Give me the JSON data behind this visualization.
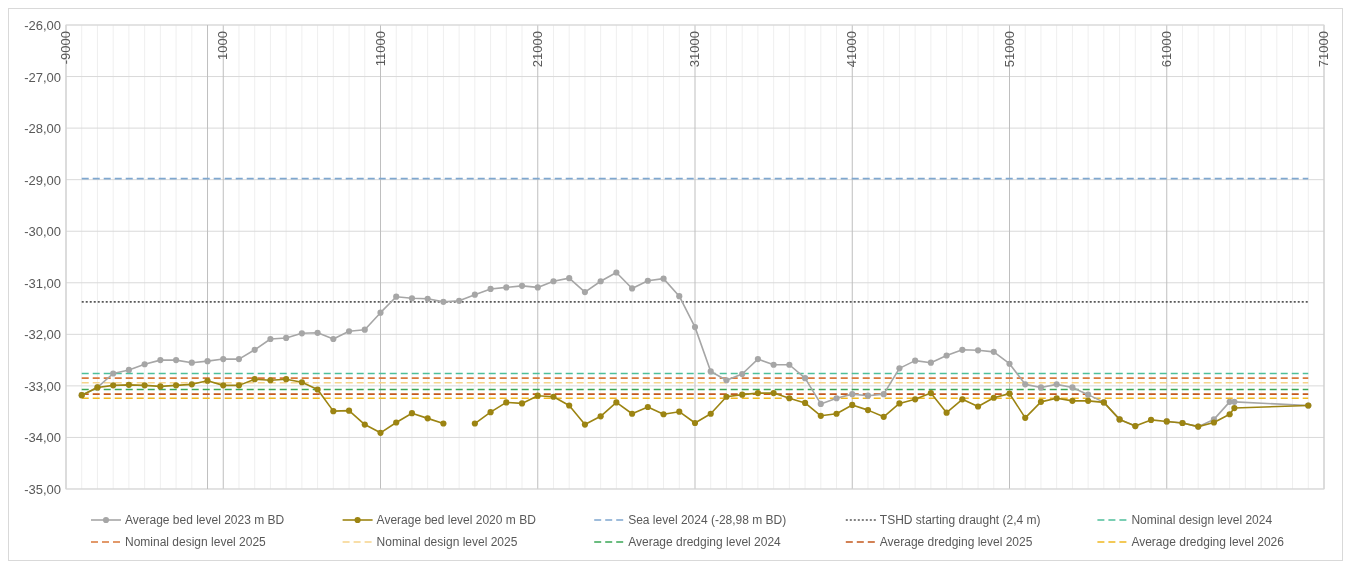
{
  "chart_data": {
    "type": "line",
    "x": [
      -8000,
      -7000,
      -6000,
      -5000,
      -4000,
      -3000,
      -2000,
      -1000,
      0,
      1000,
      2000,
      3000,
      4000,
      5000,
      6000,
      7000,
      8000,
      9000,
      10000,
      11000,
      12000,
      13000,
      14000,
      15000,
      16000,
      17000,
      18000,
      19000,
      20000,
      21000,
      22000,
      23000,
      24000,
      25000,
      26000,
      27000,
      28000,
      29000,
      30000,
      31000,
      32000,
      33000,
      34000,
      35000,
      36000,
      37000,
      38000,
      39000,
      40000,
      41000,
      42000,
      43000,
      44000,
      45000,
      46000,
      47000,
      48000,
      49000,
      50000,
      51000,
      52000,
      53000,
      54000,
      55000,
      56000,
      57000,
      58000,
      59000,
      60000,
      61000,
      62000,
      63000,
      64000,
      65000,
      65300,
      70000
    ],
    "series": [
      {
        "name": "Average bed level 2023 m BD",
        "color": "#a6a6a6",
        "values": [
          -33.18,
          -33.03,
          -32.76,
          -32.69,
          -32.58,
          -32.5,
          -32.5,
          -32.55,
          -32.52,
          -32.48,
          -32.48,
          -32.3,
          -32.09,
          -32.07,
          -31.98,
          -31.97,
          -32.09,
          -31.94,
          -31.91,
          -31.58,
          -31.27,
          -31.3,
          -31.31,
          -31.37,
          -31.35,
          -31.23,
          -31.12,
          -31.09,
          -31.06,
          -31.09,
          -30.97,
          -30.91,
          -31.18,
          -30.97,
          -30.8,
          -31.11,
          -30.96,
          -30.92,
          -31.26,
          -31.86,
          -32.72,
          -32.89,
          -32.77,
          -32.48,
          -32.59,
          -32.59,
          -32.85,
          -33.35,
          -33.24,
          -33.16,
          -33.19,
          -33.16,
          -32.66,
          -32.51,
          -32.55,
          -32.41,
          -32.3,
          -32.31,
          -32.34,
          -32.57,
          -32.97,
          -33.03,
          -32.97,
          -33.03,
          -33.17,
          -33.32,
          -33.65,
          -33.78,
          null,
          -33.69,
          -33.72,
          -33.79,
          -33.65,
          -33.31,
          -33.31,
          -33.38
        ]
      },
      {
        "name": "Average bed level 2020 m BD",
        "color": "#9c8412",
        "values": [
          -33.18,
          -33.03,
          -32.99,
          -32.98,
          -32.99,
          -33.01,
          -32.99,
          -32.97,
          -32.9,
          -32.99,
          -32.99,
          -32.87,
          -32.89,
          -32.87,
          -32.93,
          -33.07,
          -33.49,
          -33.48,
          -33.75,
          -33.91,
          -33.71,
          -33.53,
          -33.63,
          -33.73,
          null,
          -33.73,
          -33.51,
          -33.32,
          -33.34,
          -33.19,
          -33.21,
          -33.38,
          -33.75,
          -33.59,
          -33.32,
          -33.54,
          -33.41,
          -33.55,
          -33.5,
          -33.72,
          -33.54,
          -33.21,
          -33.17,
          -33.14,
          -33.14,
          -33.24,
          -33.33,
          -33.58,
          -33.54,
          -33.37,
          -33.47,
          -33.6,
          -33.34,
          -33.26,
          -33.14,
          -33.52,
          -33.26,
          -33.4,
          -33.23,
          -33.15,
          -33.62,
          -33.31,
          -33.24,
          -33.29,
          -33.29,
          -33.32,
          -33.65,
          -33.78,
          -33.66,
          -33.69,
          -33.72,
          -33.79,
          -33.71,
          -33.55,
          -33.43,
          -33.38
        ]
      }
    ],
    "ref_lines": [
      {
        "axis": "y",
        "value": -28.98,
        "label": "Sea level 2024 (-28,98 m BD)",
        "color": "#7fa7cf",
        "line_style": "dashed"
      },
      {
        "axis": "y",
        "value": -31.37,
        "label": "TSHD starting draught (2,4 m)",
        "color": "#595959",
        "line_style": "dotted"
      },
      {
        "axis": "y",
        "value": -32.76,
        "label": "Nominal design level 2024",
        "color": "#4fbf9a",
        "line_style": "dashed"
      },
      {
        "axis": "y",
        "value": -32.85,
        "label": "Nominal design level 2025",
        "color": "#d9783a",
        "line_style": "dashed"
      },
      {
        "axis": "y",
        "value": -32.94,
        "label": "Nominal design level 2025",
        "color": "#f6d48c",
        "line_style": "dashed"
      },
      {
        "axis": "y",
        "value": -33.07,
        "label": "Average dredging level 2024",
        "color": "#3aa655",
        "line_style": "dashed"
      },
      {
        "axis": "y",
        "value": -33.16,
        "label": "Average dredging level 2025",
        "color": "#c4581c",
        "line_style": "dashed"
      },
      {
        "axis": "y",
        "value": -33.24,
        "label": "Average dredging level 2026",
        "color": "#f0b820",
        "line_style": "dashed"
      }
    ],
    "xlim": [
      -9000,
      71000
    ],
    "xticks": [
      -9000,
      1000,
      11000,
      21000,
      31000,
      41000,
      51000,
      61000,
      71000
    ],
    "ylim": [
      -35,
      -26
    ],
    "yticks": [
      {
        "value": -35,
        "label": "-35,00"
      },
      {
        "value": -34,
        "label": "-34,00"
      },
      {
        "value": -33,
        "label": "-33,00"
      },
      {
        "value": -32,
        "label": "-32,00"
      },
      {
        "value": -31,
        "label": "-31,00"
      },
      {
        "value": -30,
        "label": "-30,00"
      },
      {
        "value": -29,
        "label": "-29,00"
      },
      {
        "value": -28,
        "label": "-28,00"
      },
      {
        "value": -27,
        "label": "-27,00"
      },
      {
        "value": -26,
        "label": "-26,00"
      }
    ],
    "grid": true,
    "legend": "bottom",
    "marker": "circle",
    "line_style": "solid"
  }
}
